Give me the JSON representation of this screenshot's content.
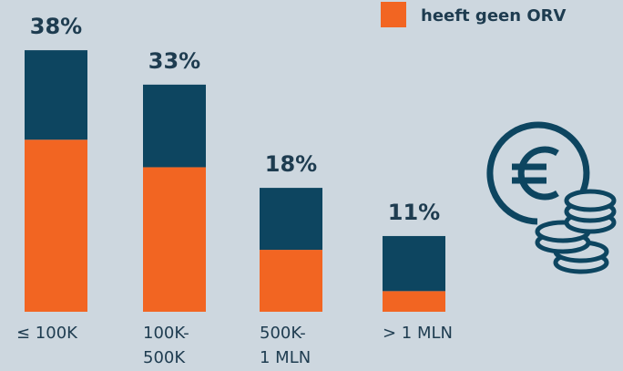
{
  "chart_data": {
    "type": "stacked-bar",
    "categories": [
      [
        "≤ 100K"
      ],
      [
        "100K-",
        "500K"
      ],
      [
        "500K-",
        "1 MLN"
      ],
      [
        "> 1 MLN"
      ]
    ],
    "series": [
      {
        "name": "heeft geen ORV",
        "color": "#f26522",
        "values": [
          25,
          21,
          9,
          3
        ]
      },
      {
        "color": "#0d4560",
        "values": [
          13,
          12,
          9,
          8
        ]
      }
    ],
    "totals": [
      38,
      33,
      18,
      11
    ],
    "total_labels": [
      "38%",
      "33%",
      "18%",
      "11%"
    ]
  }
}
